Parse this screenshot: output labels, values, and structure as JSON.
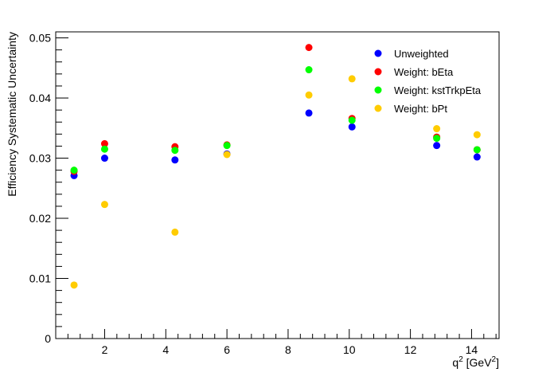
{
  "chart_data": {
    "type": "scatter",
    "title": "",
    "xlabel": "q",
    "xlabel_sup": "2",
    "xlabel_suffix": " [GeV",
    "xlabel_suffix_sup": "2",
    "xlabel_end": "]",
    "ylabel": "Efficiency Systematic Uncertainty",
    "xlim": [
      0.4,
      14.9
    ],
    "ylim": [
      0,
      0.051
    ],
    "xticks": [
      2,
      4,
      6,
      8,
      10,
      12,
      14
    ],
    "xtick_labels": [
      "2",
      "4",
      "6",
      "8",
      "10",
      "12",
      "14"
    ],
    "yticks": [
      0,
      0.01,
      0.02,
      0.03,
      0.04,
      0.05
    ],
    "ytick_labels": [
      "0",
      "0.01",
      "0.02",
      "0.03",
      "0.04",
      "0.05"
    ],
    "grid": false,
    "legend_position": "top-right",
    "x": [
      1.0,
      2.0,
      4.3,
      6.0,
      8.68,
      10.09,
      12.86,
      14.18
    ],
    "series": [
      {
        "name": "Unweighted",
        "color": "#0000ff",
        "values": [
          0.0271,
          0.03,
          0.0297,
          0.0307,
          0.0375,
          0.0352,
          0.0321,
          0.0302
        ]
      },
      {
        "name": "Weight: bEta",
        "color": "#ff0000",
        "values": [
          0.0278,
          0.0324,
          0.0319,
          0.0322,
          0.0484,
          0.0366,
          0.0335,
          0.0314
        ]
      },
      {
        "name": "Weight: kstTrkpEta",
        "color": "#00ff00",
        "values": [
          0.028,
          0.0315,
          0.0313,
          0.0321,
          0.0447,
          0.0363,
          0.0333,
          0.0314
        ]
      },
      {
        "name": "Weight: bPt",
        "color": "#ffcc00",
        "values": [
          0.0089,
          0.0223,
          0.0177,
          0.0306,
          0.0405,
          0.0432,
          0.0349,
          0.0339
        ]
      }
    ]
  }
}
